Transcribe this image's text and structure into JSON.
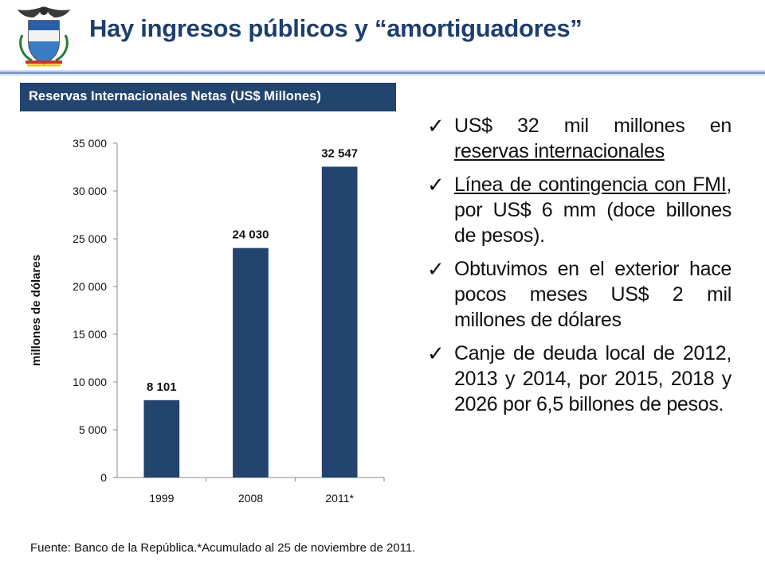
{
  "slide": {
    "title": "Hay ingresos públicos y “amortiguadores”",
    "source": "Fuente: Banco de la República.*Acumulado al 25 de noviembre de 2011."
  },
  "chart_box": {
    "title": "Reservas Internacionales Netas (US$ Millones)"
  },
  "bullets": [
    {
      "pre": "US$ 32 mil millones en ",
      "u": "reservas internacionales",
      "post": ""
    },
    {
      "pre": "",
      "u": "Línea de contingencia con FMI",
      "post": ", por US$ 6 mm (doce billones de pesos)."
    },
    {
      "pre": "Obtuvimos en el exterior hace pocos meses US$ 2 mil millones de dólares",
      "u": "",
      "post": ""
    },
    {
      "pre": "Canje de deuda local de 2012, 2013 y 2014, por 2015, 2018 y 2026 por 6,5 billones de pesos.",
      "u": "",
      "post": ""
    }
  ],
  "colors": {
    "title": "#1e3f6e",
    "bar": "#22446f",
    "rule": "#7a9cc9"
  },
  "chart_data": {
    "type": "bar",
    "categories": [
      "1999",
      "2008",
      "2011*"
    ],
    "values": [
      8101,
      24030,
      32547
    ],
    "value_labels": [
      "8 101",
      "24 030",
      "32 547"
    ],
    "ylabel": "millones de dólares",
    "ylim": [
      0,
      35000
    ],
    "yticks": [
      0,
      5000,
      10000,
      15000,
      20000,
      25000,
      30000,
      35000
    ],
    "ytick_labels": [
      "0",
      "5 000",
      "10 000",
      "15 000",
      "20 000",
      "25 000",
      "30 000",
      "35 000"
    ],
    "grid": false,
    "legend": "none"
  }
}
